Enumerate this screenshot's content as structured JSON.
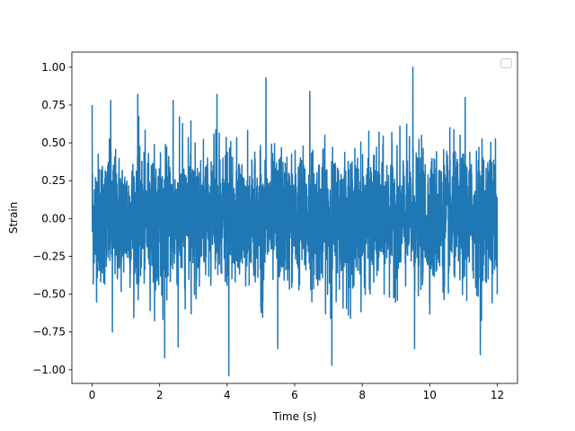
{
  "chart_data": {
    "type": "line",
    "title": "",
    "xlabel": "Time (s)",
    "ylabel": "Strain",
    "xlim": [
      -0.6,
      12.6
    ],
    "ylim": [
      -1.09,
      1.1
    ],
    "x_ticks": [
      0,
      2,
      4,
      6,
      8,
      10,
      12
    ],
    "y_ticks": [
      -1.0,
      -0.75,
      -0.5,
      -0.25,
      0.0,
      0.25,
      0.5,
      0.75,
      1.0
    ],
    "x_tick_labels": [
      "0",
      "2",
      "4",
      "6",
      "8",
      "10",
      "12"
    ],
    "y_tick_labels": [
      "−1.00",
      "−0.75",
      "−0.50",
      "−0.25",
      "0.00",
      "0.25",
      "0.50",
      "0.75",
      "1.00"
    ],
    "grid": false,
    "legend": {
      "placement": "top-right",
      "entries": []
    },
    "series": [
      {
        "color": "#1f77b4",
        "x_range": [
          0,
          12
        ],
        "typical_range": [
          -0.5,
          0.5
        ],
        "peak_points": [
          {
            "x": 0.0,
            "y": 0.75
          },
          {
            "x": 0.55,
            "y": 0.78
          },
          {
            "x": 1.35,
            "y": 0.82
          },
          {
            "x": 2.4,
            "y": 0.78
          },
          {
            "x": 3.7,
            "y": 0.82
          },
          {
            "x": 5.15,
            "y": 0.93
          },
          {
            "x": 6.45,
            "y": 0.84
          },
          {
            "x": 9.5,
            "y": 1.0
          },
          {
            "x": 11.05,
            "y": 0.8
          },
          {
            "x": 2.15,
            "y": -0.92
          },
          {
            "x": 4.05,
            "y": -1.04
          },
          {
            "x": 5.5,
            "y": -0.86
          },
          {
            "x": 7.1,
            "y": -0.97
          },
          {
            "x": 9.55,
            "y": -0.86
          },
          {
            "x": 11.5,
            "y": -0.9
          },
          {
            "x": 0.6,
            "y": -0.75
          },
          {
            "x": 2.55,
            "y": -0.85
          },
          {
            "x": 12.0,
            "y": -0.5
          }
        ]
      }
    ]
  }
}
